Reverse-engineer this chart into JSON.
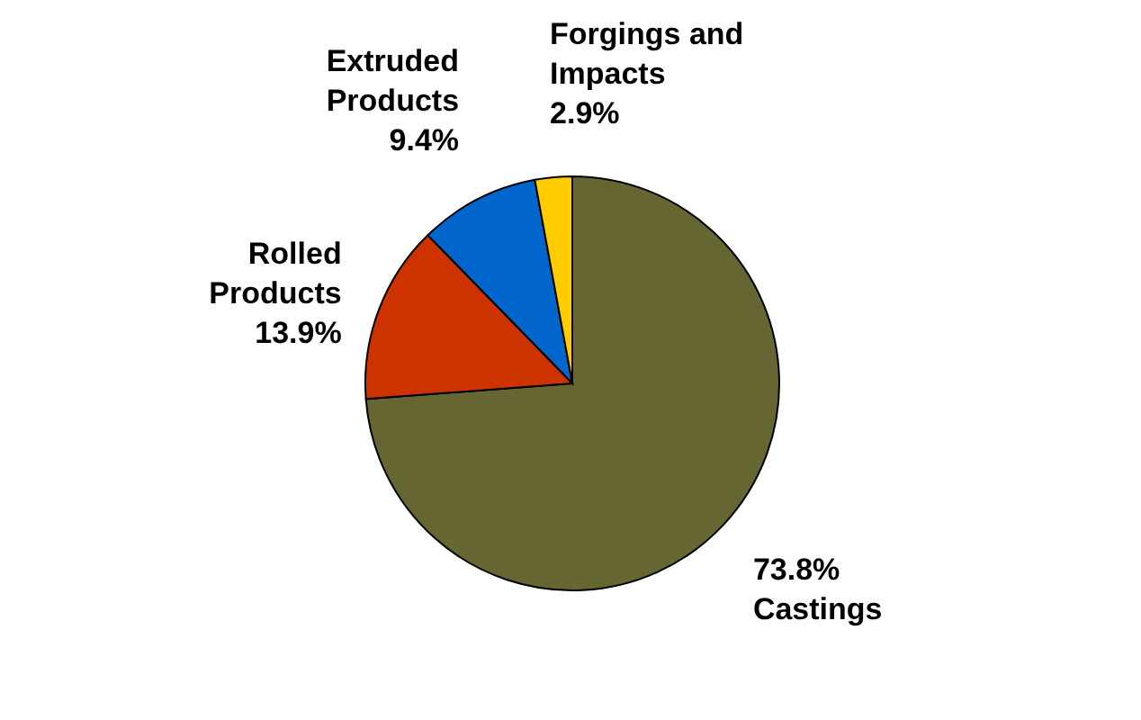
{
  "chart_data": {
    "type": "pie",
    "categories": [
      "Castings",
      "Rolled Products",
      "Extruded Products",
      "Forgings and Impacts"
    ],
    "values": [
      73.8,
      13.9,
      9.4,
      2.9
    ],
    "value_labels": [
      "73.8%",
      "13.9%",
      "9.4%",
      "2.9%"
    ],
    "colors": [
      "#666633",
      "#cc3300",
      "#0066cc",
      "#ffcc00"
    ]
  }
}
